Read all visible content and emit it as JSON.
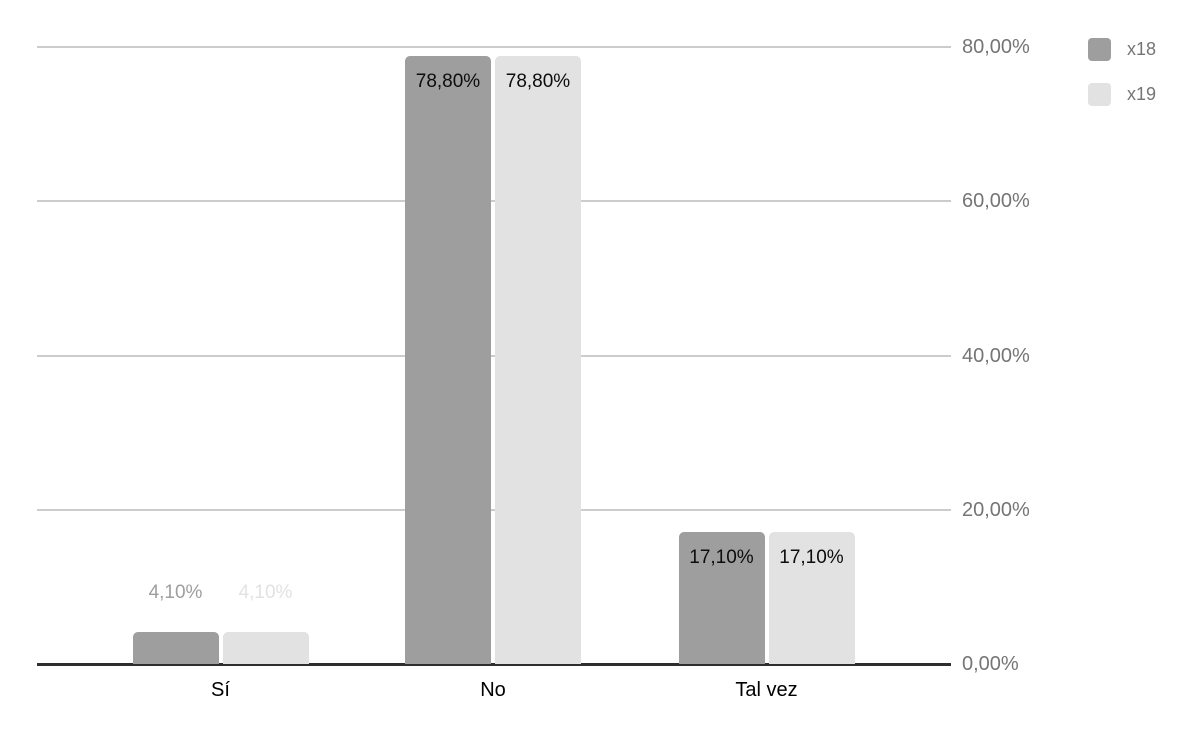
{
  "chart_data": {
    "type": "bar",
    "title": "",
    "xlabel": "",
    "ylabel": "",
    "categories": [
      "Sí",
      "No",
      "Tal vez"
    ],
    "series": [
      {
        "name": "x18",
        "color": "#9e9e9e",
        "values": [
          4.1,
          78.8,
          17.1
        ],
        "labels": [
          "4,10%",
          "78,80%",
          "17,10%"
        ]
      },
      {
        "name": "x19",
        "color": "#e2e2e2",
        "values": [
          4.1,
          78.8,
          17.1
        ],
        "labels": [
          "4,10%",
          "78,80%",
          "17,10%"
        ]
      }
    ],
    "y_axis": {
      "side": "right",
      "ylim": [
        0,
        80
      ],
      "ticks": [
        0,
        20,
        40,
        60,
        80
      ],
      "tick_labels": [
        "0,00%",
        "20,00%",
        "40,00%",
        "60,00%",
        "80,00%"
      ]
    },
    "grid": true,
    "legend": {
      "position": "top-right",
      "entries": [
        "x18",
        "x19"
      ]
    }
  },
  "colors": {
    "background": "#ffffff",
    "gridline": "#cccccc",
    "axis_line": "#2e2e2e",
    "y_tick_label": "#757575",
    "x_tick_label": "#000000",
    "legend_text": "#757575",
    "inside_label": "#0d0d0d"
  }
}
